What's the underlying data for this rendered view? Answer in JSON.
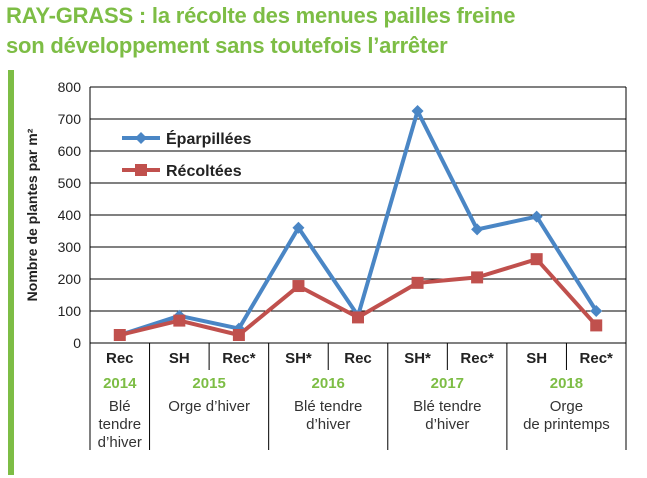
{
  "title": {
    "line1": "RAY-GRASS : la récolte des menues pailles freine",
    "line2": "son développement sans toutefois l’arrêter"
  },
  "colors": {
    "accent": "#7dbd45",
    "series_blue": "#4a86c5",
    "series_red": "#c0504d",
    "grid": "#000000"
  },
  "chart_data": {
    "type": "line",
    "ylabel": "Nombre de plantes par m²",
    "ylim": [
      0,
      800
    ],
    "yticks": [
      0,
      100,
      200,
      300,
      400,
      500,
      600,
      700,
      800
    ],
    "grid": true,
    "legend_position": "top-left",
    "categories": [
      "Rec",
      "SH",
      "Rec*",
      "SH*",
      "Rec",
      "SH*",
      "Rec*",
      "SH",
      "Rec*"
    ],
    "series": [
      {
        "name": "Éparpillées",
        "color": "#4a86c5",
        "marker": "diamond",
        "values": [
          25,
          85,
          45,
          360,
          85,
          725,
          355,
          395,
          100
        ]
      },
      {
        "name": "Récoltées",
        "color": "#c0504d",
        "marker": "square",
        "values": [
          25,
          70,
          25,
          178,
          80,
          188,
          205,
          262,
          55
        ]
      }
    ],
    "groups": [
      {
        "year": "2014",
        "crop_lines": [
          "Blé",
          "tendre",
          "d’hiver"
        ],
        "span": 1
      },
      {
        "year": "2015",
        "crop_lines": [
          "Orge d’hiver"
        ],
        "span": 2
      },
      {
        "year": "2016",
        "crop_lines": [
          "Blé tendre",
          "d’hiver"
        ],
        "span": 2
      },
      {
        "year": "2017",
        "crop_lines": [
          "Blé tendre",
          "d’hiver"
        ],
        "span": 2
      },
      {
        "year": "2018",
        "crop_lines": [
          "Orge",
          "de printemps"
        ],
        "span": 2
      }
    ]
  }
}
